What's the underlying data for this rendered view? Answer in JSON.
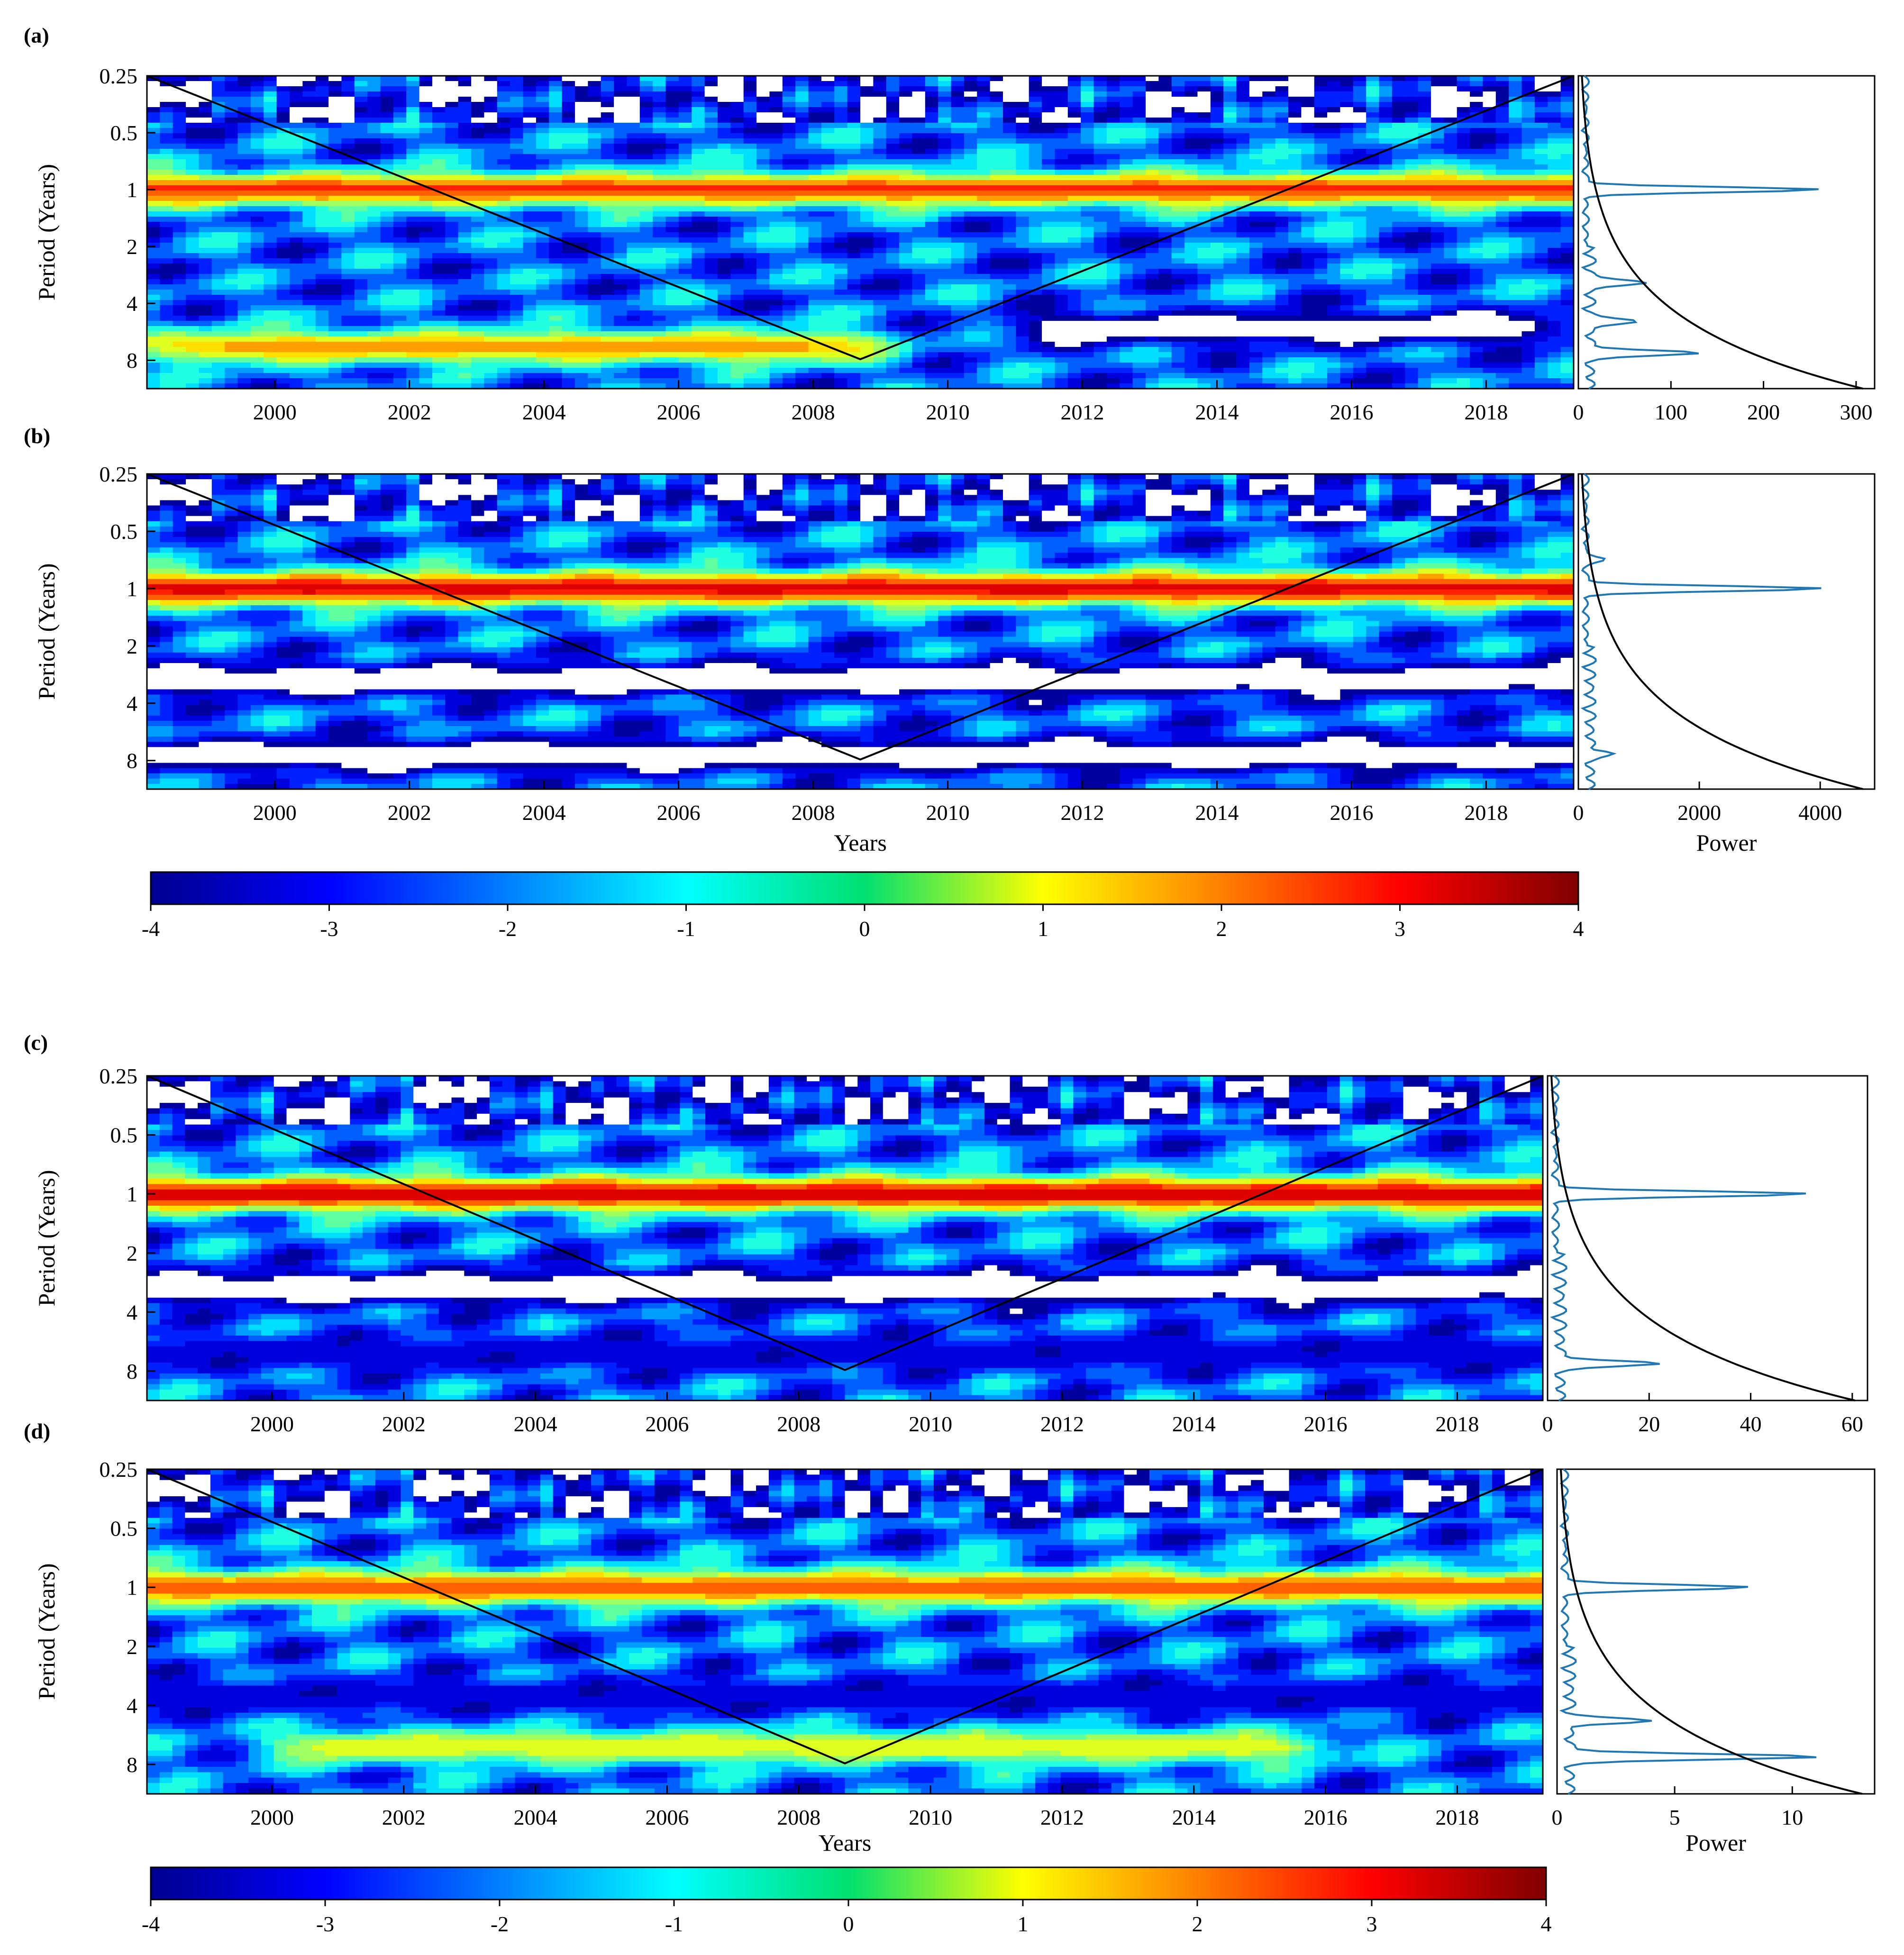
{
  "chart_data": [
    {
      "type": "heatmap",
      "panel": "(a)",
      "ylabel": "Period (Years)",
      "xlabel": "",
      "x_ticks": [
        "2000",
        "2002",
        "2004",
        "2006",
        "2008",
        "2010",
        "2012",
        "2014",
        "2016",
        "2018"
      ],
      "y_ticks": [
        "0.25",
        "0.5",
        "1",
        "2",
        "4",
        "8"
      ],
      "xlim": [
        1998.1,
        2019.3
      ],
      "ylim_period": [
        0.25,
        11.3
      ],
      "cone_of_influence_min_period_at": 2008.7,
      "bands": [
        {
          "period": 1.0,
          "value": 2.6,
          "note": "strong annual band"
        },
        {
          "period": 6.8,
          "value": 1.8,
          "x_range": [
            1998.1,
            2009.0
          ]
        },
        {
          "period": 5.4,
          "value": -4.5,
          "x_range": [
            2011.0,
            2019.3
          ]
        }
      ],
      "global_spectrum": {
        "xlabel": "",
        "x_ticks": [
          "0",
          "100",
          "200",
          "300"
        ],
        "xlim": [
          0,
          320
        ],
        "peaks": [
          {
            "period": 1.0,
            "power": 255
          },
          {
            "period": 7.3,
            "power": 120
          },
          {
            "period": 5.0,
            "power": 55
          },
          {
            "period": 3.1,
            "power": 65
          }
        ]
      }
    },
    {
      "type": "heatmap",
      "panel": "(b)",
      "ylabel": "Period (Years)",
      "xlabel": "Years",
      "x_ticks": [
        "2000",
        "2002",
        "2004",
        "2006",
        "2008",
        "2010",
        "2012",
        "2014",
        "2016",
        "2018"
      ],
      "y_ticks": [
        "0.25",
        "0.5",
        "1",
        "2",
        "4",
        "8"
      ],
      "xlim": [
        1998.1,
        2019.3
      ],
      "ylim_period": [
        0.25,
        11.3
      ],
      "cone_of_influence_min_period_at": 2008.7,
      "bands": [
        {
          "period": 1.0,
          "value": 3.2,
          "note": "strong annual band"
        },
        {
          "period": 3.0,
          "value": -4.5
        },
        {
          "period": 7.5,
          "value": -4.5
        }
      ],
      "global_spectrum": {
        "xlabel": "Power",
        "x_ticks": [
          "0",
          "2000",
          "4000"
        ],
        "xlim": [
          0,
          4900
        ],
        "peaks": [
          {
            "period": 1.0,
            "power": 3950
          },
          {
            "period": 7.3,
            "power": 380
          },
          {
            "period": 0.7,
            "power": 300
          }
        ]
      }
    },
    {
      "type": "heatmap",
      "panel": "(c)",
      "ylabel": "Period (Years)",
      "xlabel": "",
      "x_ticks": [
        "2000",
        "2002",
        "2004",
        "2006",
        "2008",
        "2010",
        "2012",
        "2014",
        "2016",
        "2018"
      ],
      "y_ticks": [
        "0.25",
        "0.5",
        "1",
        "2",
        "4",
        "8"
      ],
      "xlim": [
        1998.1,
        2019.3
      ],
      "ylim_period": [
        0.25,
        11.3
      ],
      "cone_of_influence_min_period_at": 2008.7,
      "bands": [
        {
          "period": 1.0,
          "value": 3.3,
          "note": "strong annual band"
        },
        {
          "period": 3.0,
          "value": -4.5
        },
        {
          "period": 6.5,
          "value": -3.5
        }
      ],
      "global_spectrum": {
        "xlabel": "",
        "x_ticks": [
          "0",
          "20",
          "40",
          "60"
        ],
        "xlim": [
          0,
          63
        ],
        "peaks": [
          {
            "period": 1.0,
            "power": 50
          },
          {
            "period": 7.3,
            "power": 20
          }
        ]
      }
    },
    {
      "type": "heatmap",
      "panel": "(d)",
      "ylabel": "Period (Years)",
      "xlabel": "Years",
      "x_ticks": [
        "2000",
        "2002",
        "2004",
        "2006",
        "2008",
        "2010",
        "2012",
        "2014",
        "2016",
        "2018"
      ],
      "y_ticks": [
        "0.25",
        "0.5",
        "1",
        "2",
        "4",
        "8"
      ],
      "xlim": [
        1998.1,
        2019.3
      ],
      "ylim_period": [
        0.25,
        11.3
      ],
      "cone_of_influence_min_period_at": 2008.7,
      "bands": [
        {
          "period": 1.0,
          "value": 2.3,
          "note": "annual band"
        },
        {
          "period": 6.5,
          "value": 1.0,
          "x_range": [
            2000.0,
            2016.0
          ]
        },
        {
          "period": 3.6,
          "value": -3.5
        }
      ],
      "global_spectrum": {
        "xlabel": "Power",
        "x_ticks": [
          "0",
          "5",
          "10"
        ],
        "xlim": [
          0,
          13.5
        ],
        "peaks": [
          {
            "period": 1.0,
            "power": 7.9
          },
          {
            "period": 7.3,
            "power": 10.8
          },
          {
            "period": 4.8,
            "power": 3.3
          }
        ]
      }
    }
  ],
  "colorbars": [
    {
      "ticks": [
        "-4",
        "-3",
        "-2",
        "-1",
        "0",
        "1",
        "2",
        "3",
        "4"
      ],
      "range": [
        -4,
        4
      ],
      "colormap": "jet"
    },
    {
      "ticks": [
        "-4",
        "-3",
        "-2",
        "-1",
        "0",
        "1",
        "2",
        "3",
        "4"
      ],
      "range": [
        -4,
        4
      ],
      "colormap": "jet"
    }
  ],
  "colors": {
    "spectrum_line": "#1f77b4",
    "significance_line": "#000000",
    "coi_line": "#000000"
  }
}
